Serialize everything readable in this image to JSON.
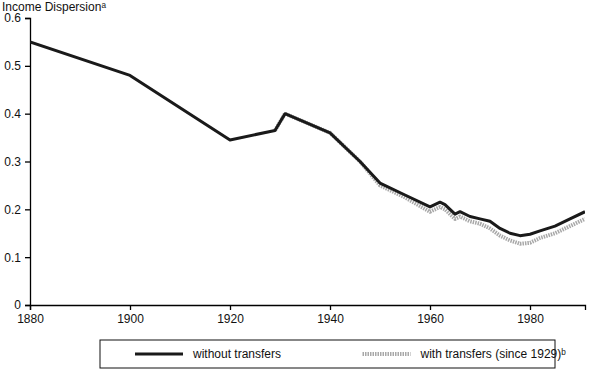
{
  "chart_data": {
    "type": "line",
    "y_label": "Income Dispersionᵃ",
    "x": [
      1880,
      1900,
      1920,
      1929,
      1931,
      1940,
      1946,
      1950,
      1955,
      1960,
      1962,
      1963,
      1965,
      1966,
      1968,
      1970,
      1972,
      1974,
      1976,
      1978,
      1980,
      1982,
      1985,
      1988,
      1991
    ],
    "series": [
      {
        "name": "with transfers (since 1929)ᵇ",
        "color": "#a8a8a8",
        "line_style": "dotted",
        "values": [
          null,
          null,
          null,
          0.365,
          0.4,
          0.36,
          0.3,
          0.25,
          0.225,
          0.195,
          0.205,
          0.2,
          0.18,
          0.185,
          0.175,
          0.17,
          0.16,
          0.145,
          0.135,
          0.128,
          0.13,
          0.14,
          0.15,
          0.165,
          0.18
        ]
      },
      {
        "name": "without transfers",
        "color": "#1a1a1a",
        "line_style": "solid",
        "values": [
          0.55,
          0.48,
          0.345,
          0.365,
          0.4,
          0.36,
          0.3,
          0.255,
          0.23,
          0.205,
          0.215,
          0.21,
          0.19,
          0.195,
          0.185,
          0.18,
          0.175,
          0.16,
          0.15,
          0.145,
          0.148,
          0.155,
          0.165,
          0.18,
          0.195
        ]
      }
    ],
    "xlim": [
      1880,
      1991
    ],
    "xticks": [
      1880,
      1900,
      1920,
      1940,
      1960,
      1980
    ],
    "ylim": [
      0,
      0.6
    ],
    "yticks": [
      0,
      0.1,
      0.2,
      0.3,
      0.4,
      0.5,
      0.6
    ],
    "grid": false,
    "legend": "bottom"
  }
}
